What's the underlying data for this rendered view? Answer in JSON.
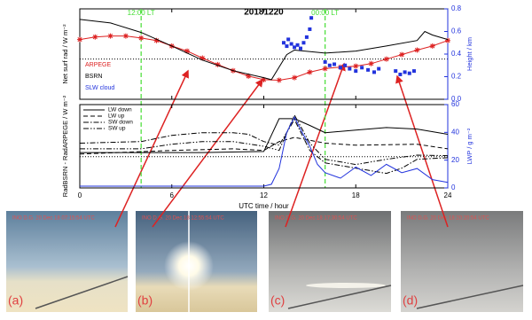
{
  "chart_data": [
    {
      "type": "line",
      "title": "20181220",
      "ylabel": "Net surf rad / W m⁻²",
      "y2label": "Height / km",
      "ylim": [
        -80,
        100
      ],
      "y2lim": [
        0,
        0.8
      ],
      "y2ticks": [
        {
          "value": 0,
          "label": "0.0"
        },
        {
          "value": 0.2,
          "label": "0.2"
        },
        {
          "value": 0.4,
          "label": "0.4"
        },
        {
          "value": 0.6,
          "label": "0.6"
        },
        {
          "value": 0.8,
          "label": "0.8"
        }
      ],
      "y2color": "#2233dd",
      "zero_line": true,
      "legend": "left",
      "annotations": [
        {
          "text": "12:00 LT",
          "x": 4,
          "color": "#44dd33"
        },
        {
          "text": "00:00 LT",
          "x": 16,
          "color": "#44dd33"
        }
      ],
      "series": [
        {
          "name": "ARPEGE",
          "color": "#dd2222",
          "dash": "solid",
          "marker": "star",
          "x": [
            0,
            1,
            2,
            3,
            4,
            5,
            6,
            7,
            8,
            9,
            10,
            11,
            12,
            13,
            14,
            15,
            16,
            17,
            18,
            19,
            20,
            21,
            22,
            23,
            24
          ],
          "values": [
            39,
            44,
            46,
            46,
            42,
            37,
            26,
            16,
            2,
            -11,
            -23,
            -34,
            -41,
            -42,
            -37,
            -26,
            -19,
            -16,
            -14,
            -9,
            0,
            9,
            18,
            26,
            37
          ]
        },
        {
          "name": "BSRN",
          "color": "#000000",
          "dash": "solid",
          "x": [
            0,
            2,
            4,
            6,
            8,
            10,
            12,
            12.5,
            13.5,
            14,
            16,
            18,
            20,
            22,
            22.5,
            23,
            24
          ],
          "values": [
            79,
            72,
            53,
            26,
            -2,
            -23,
            -37,
            -41,
            9,
            18,
            12,
            16,
            26,
            37,
            55,
            48,
            39
          ]
        },
        {
          "name": "SLW cloud",
          "color": "#2233dd",
          "type": "scatter",
          "axis": "y2",
          "x": [
            13.3,
            13.5,
            13.6,
            13.8,
            14.0,
            14.2,
            14.4,
            14.6,
            14.8,
            15.0,
            15.1,
            16.0,
            16.3,
            16.6,
            17.0,
            17.3,
            17.6,
            18.0,
            18.4,
            18.8,
            19.2,
            19.5,
            20.6,
            20.9,
            21.2,
            21.5,
            21.8
          ],
          "values": [
            0.5,
            0.47,
            0.53,
            0.49,
            0.46,
            0.48,
            0.45,
            0.5,
            0.55,
            0.62,
            0.72,
            0.33,
            0.3,
            0.31,
            0.28,
            0.3,
            0.27,
            0.25,
            0.28,
            0.26,
            0.24,
            0.27,
            0.25,
            0.22,
            0.24,
            0.23,
            0.25
          ]
        }
      ]
    },
    {
      "type": "line",
      "xlabel": "UTC time / hour",
      "ylabel": "RadBSRN - RadARPEGE / W m⁻²",
      "y2label": "LWP / g m⁻²",
      "xlim": [
        0,
        24
      ],
      "xticks": [
        0,
        6,
        12,
        18,
        24
      ],
      "ylim": [
        -60,
        100
      ],
      "y2lim": [
        0,
        60
      ],
      "y2ticks": [
        0,
        20,
        40,
        60
      ],
      "y2color": "#2233dd",
      "zero_line": true,
      "legend": "upper left",
      "series": [
        {
          "name": "LW down",
          "color": "#000000",
          "dash": "solid",
          "x": [
            0,
            4,
            8,
            12,
            13,
            14,
            15,
            16,
            18,
            20,
            22,
            24
          ],
          "values": [
            8,
            8,
            8,
            10,
            73,
            73,
            60,
            46,
            51,
            56,
            53,
            43
          ]
        },
        {
          "name": "LW up",
          "color": "#000000",
          "dash": "dashed",
          "x": [
            0,
            6,
            10,
            12,
            13,
            14,
            16,
            18,
            22,
            24
          ],
          "values": [
            5,
            12,
            15,
            12,
            29,
            37,
            26,
            22,
            24,
            15
          ]
        },
        {
          "name": "SW down",
          "color": "#000000",
          "dash": "dashdot",
          "x": [
            0,
            4,
            6,
            8,
            10,
            11,
            12,
            13,
            14,
            15,
            16,
            18,
            20,
            21,
            22,
            24
          ],
          "values": [
            26,
            29,
            41,
            46,
            46,
            43,
            29,
            22,
            71,
            12,
            -12,
            -22,
            -32,
            -22,
            -5,
            -2
          ]
        },
        {
          "name": "SW up",
          "color": "#000000",
          "dash": "dashdotdot",
          "x": [
            0,
            4,
            6,
            8,
            10,
            12,
            13,
            14,
            15,
            16,
            18,
            20,
            22,
            24
          ],
          "values": [
            15,
            15,
            24,
            29,
            29,
            20,
            12,
            80,
            26,
            -5,
            -15,
            -5,
            3,
            2
          ]
        },
        {
          "color": "#2233dd",
          "dash": "solid",
          "axis": "y2",
          "x": [
            0,
            12,
            12.5,
            13,
            13.5,
            14,
            14.5,
            15,
            15.5,
            16,
            17,
            18,
            19,
            20,
            21,
            22,
            23,
            24
          ],
          "values": [
            1.3,
            1.3,
            2.6,
            14,
            40,
            51,
            40,
            30,
            17,
            11,
            7,
            15,
            9,
            17,
            11,
            14,
            6,
            4
          ]
        }
      ]
    }
  ],
  "photos": [
    {
      "label": "(a)",
      "caption": "INO D.G.   20 Dec 18   07:15:54   UTC"
    },
    {
      "label": "(b)",
      "caption": "INO D.G.   20 Dec 18   12:55:54   UTC"
    },
    {
      "label": "(c)",
      "caption": "INO D.G.   20 Dec 18   17:30:54   UTC"
    },
    {
      "label": "(d)",
      "caption": "INO D.G.   20 Dec 18   20:20:54   UTC"
    }
  ]
}
